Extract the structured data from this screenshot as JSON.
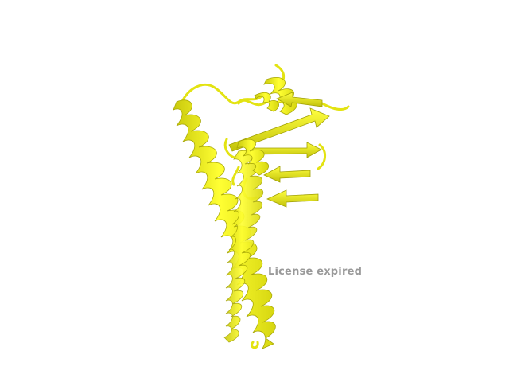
{
  "viewer": {
    "background": "#ffffff",
    "watermark_text": "License expired",
    "watermark_color": "#9a9a9a"
  },
  "structure": {
    "representation": "cartoon",
    "color": "#f5f51a",
    "shade_color": "#b8b80a",
    "elements": [
      "alpha-helix",
      "alpha-helix",
      "beta-strand",
      "beta-strand",
      "beta-strand",
      "beta-strand",
      "loop"
    ]
  }
}
